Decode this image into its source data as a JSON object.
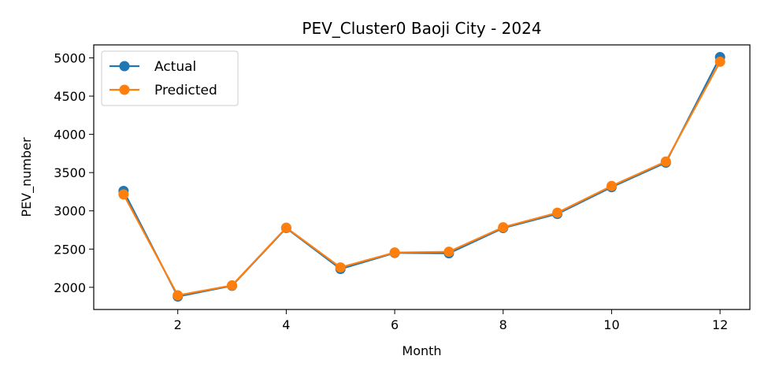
{
  "chart_data": {
    "type": "line",
    "title": "PEV_Cluster0 Baoji City - 2024",
    "xlabel": "Month",
    "ylabel": "PEV_number",
    "x": [
      1,
      2,
      3,
      4,
      5,
      6,
      7,
      8,
      9,
      10,
      11,
      12
    ],
    "xlim": [
      0.45,
      12.55
    ],
    "ylim": [
      1710,
      5170
    ],
    "xticks": [
      2,
      4,
      6,
      8,
      10,
      12
    ],
    "yticks": [
      2000,
      2500,
      3000,
      3500,
      4000,
      4500,
      5000
    ],
    "grid": false,
    "legend_position": "top-left",
    "series": [
      {
        "name": "Actual",
        "color": "#1f77b4",
        "values": [
          3260,
          1880,
          2020,
          2775,
          2240,
          2450,
          2445,
          2775,
          2960,
          3310,
          3630,
          5010
        ]
      },
      {
        "name": "Predicted",
        "color": "#ff7f0e",
        "values": [
          3215,
          1895,
          2025,
          2780,
          2260,
          2455,
          2465,
          2785,
          2975,
          3325,
          3645,
          4950
        ]
      }
    ]
  }
}
